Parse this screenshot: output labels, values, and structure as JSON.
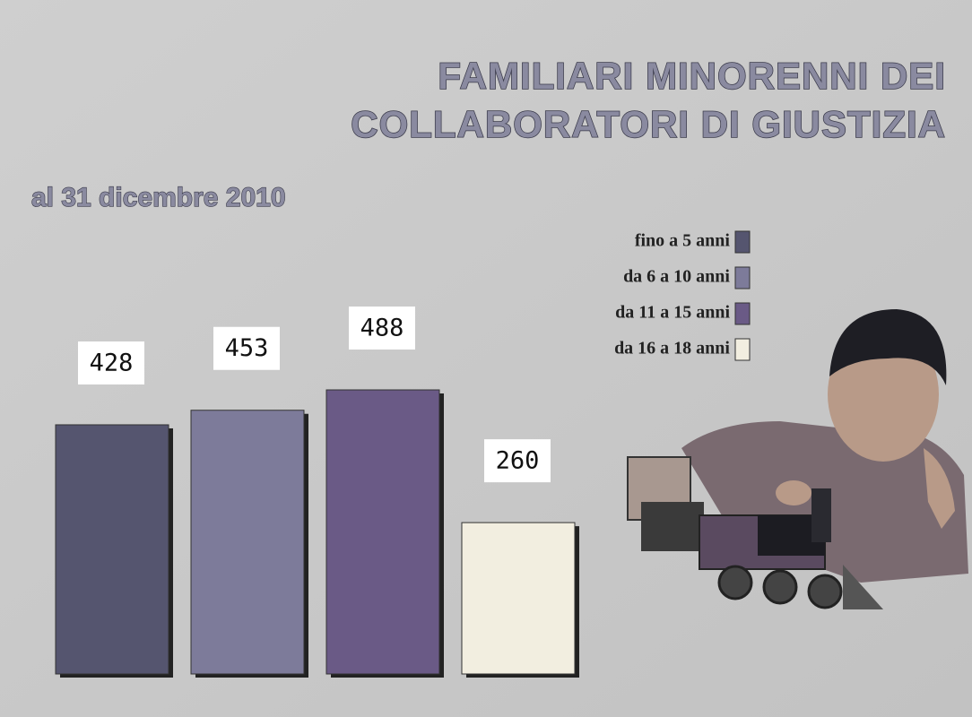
{
  "chart_data": {
    "type": "bar",
    "title": [
      "FAMILIARI  MINORENNI DEI",
      "COLLABORATORI DI GIUSTIZIA"
    ],
    "subtitle": "al 31 dicembre 2010",
    "categories": [
      null
    ],
    "series": [
      {
        "name": "fino a 5 anni",
        "color": "#55556f",
        "values": [
          428
        ]
      },
      {
        "name": "da 6 a 10 anni",
        "color": "#7d7b9a",
        "values": [
          453
        ]
      },
      {
        "name": "da 11 a 15 anni",
        "color": "#6a5a86",
        "values": [
          488
        ]
      },
      {
        "name": "da 16 a 18 anni",
        "color": "#f2eee0",
        "values": [
          260
        ]
      }
    ]
  }
}
